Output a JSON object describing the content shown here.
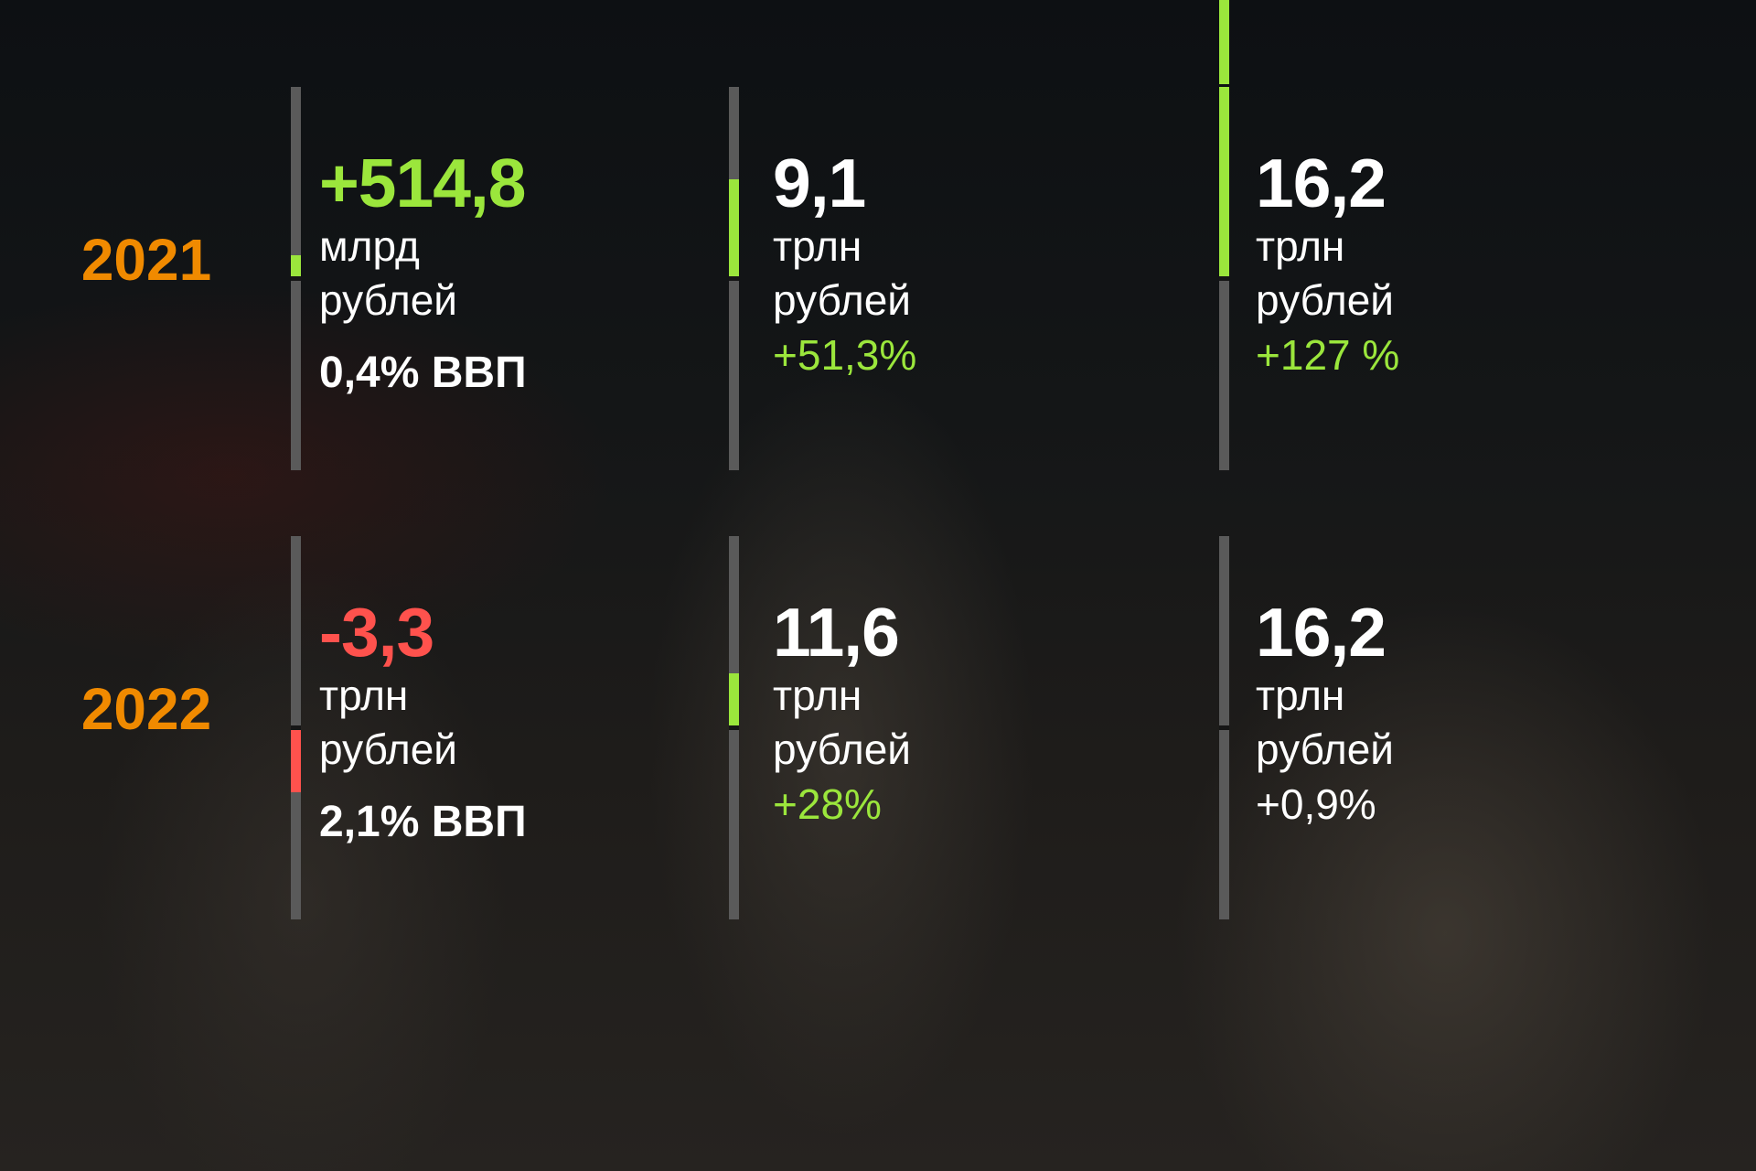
{
  "colors": {
    "year": "#f08a00",
    "positive": "#9be63c",
    "negative": "#ff524d",
    "neutral": "#ffffff",
    "bar": "#5a5a5a"
  },
  "rows": [
    {
      "year": "2021",
      "cells": [
        {
          "value": "+514,8",
          "value_tone": "positive",
          "unit": "млрд",
          "currency": "рублей",
          "extra": "0,4% ВВП",
          "extra_style": "pct",
          "extra_tone": "neutral",
          "bar": {
            "direction": "up",
            "fraction": 0.11,
            "tone": "positive"
          }
        },
        {
          "value": "9,1",
          "value_tone": "neutral",
          "unit": "трлн",
          "currency": "рублей",
          "extra": "+51,3%",
          "extra_style": "grow",
          "extra_tone": "positive",
          "bar": {
            "direction": "up",
            "fraction": 0.51,
            "tone": "positive"
          }
        },
        {
          "value": "16,2",
          "value_tone": "neutral",
          "unit": "трлн",
          "currency": "рублей",
          "extra": "+127 %",
          "extra_style": "grow",
          "extra_tone": "positive",
          "bar": {
            "direction": "up",
            "fraction": 1.0,
            "overflow": true,
            "tone": "positive"
          }
        }
      ]
    },
    {
      "year": "2022",
      "cells": [
        {
          "value": "-3,3",
          "value_tone": "negative",
          "unit": "трлн",
          "currency": "рублей",
          "extra": "2,1% ВВП",
          "extra_style": "pct",
          "extra_tone": "neutral",
          "bar": {
            "direction": "down",
            "fraction": 0.33,
            "tone": "negative"
          }
        },
        {
          "value": "11,6",
          "value_tone": "neutral",
          "unit": "трлн",
          "currency": "рублей",
          "extra": "+28%",
          "extra_style": "grow",
          "extra_tone": "positive",
          "bar": {
            "direction": "up",
            "fraction": 0.275,
            "tone": "positive"
          }
        },
        {
          "value": "16,2",
          "value_tone": "neutral",
          "unit": "трлн",
          "currency": "рублей",
          "extra": "+0,9%",
          "extra_style": "grow",
          "extra_tone": "neutral",
          "bar": {
            "direction": "up",
            "fraction": 0,
            "tone": "positive"
          }
        }
      ]
    }
  ]
}
